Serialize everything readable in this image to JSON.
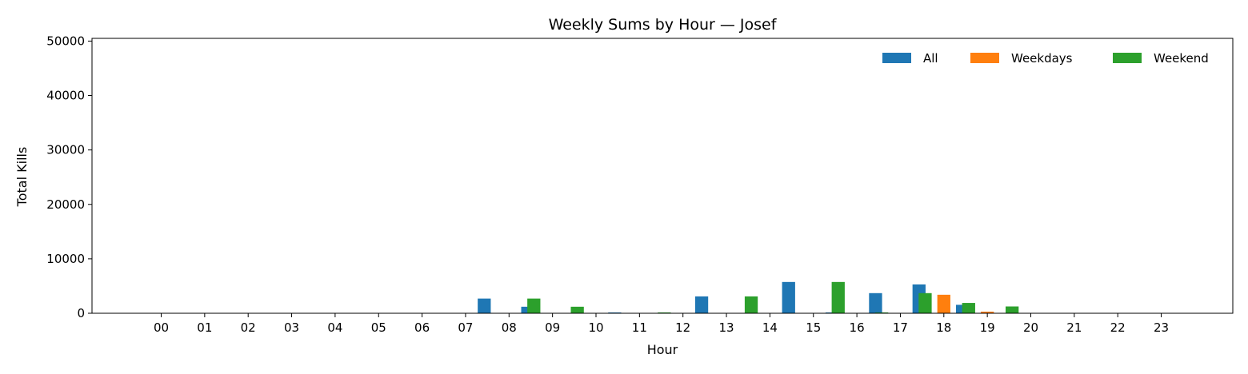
{
  "chart_data": {
    "type": "bar",
    "title": "Weekly Sums by Hour — Josef",
    "xlabel": "Hour",
    "ylabel": "Total Kills",
    "ylim": [
      0,
      50500
    ],
    "yticks": [
      0,
      10000,
      20000,
      30000,
      40000,
      50000
    ],
    "categories": [
      "00",
      "01",
      "02",
      "03",
      "04",
      "05",
      "06",
      "07",
      "08",
      "09",
      "10",
      "11",
      "12",
      "13",
      "14",
      "15",
      "16",
      "17",
      "18",
      "19",
      "20",
      "21",
      "22",
      "23"
    ],
    "series": [
      {
        "name": "All",
        "color": "#1f77b4",
        "values": [
          0,
          0,
          0,
          0,
          0,
          0,
          0,
          0,
          2700,
          1200,
          0,
          150,
          0,
          3100,
          0,
          5750,
          150,
          3700,
          5300,
          1550,
          0,
          0,
          0,
          0
        ]
      },
      {
        "name": "Weekdays",
        "color": "#ff7f0e",
        "values": [
          0,
          0,
          0,
          0,
          0,
          0,
          0,
          0,
          0,
          0,
          0,
          0,
          0,
          0,
          0,
          0,
          0,
          0,
          3400,
          300,
          0,
          0,
          0,
          0
        ]
      },
      {
        "name": "Weekend",
        "color": "#2ca02c",
        "values": [
          0,
          0,
          0,
          0,
          0,
          0,
          0,
          0,
          2700,
          1200,
          0,
          150,
          0,
          3100,
          0,
          5750,
          150,
          3700,
          1900,
          1250,
          0,
          0,
          0,
          0
        ]
      }
    ],
    "legend": "top-right",
    "grid": false
  }
}
